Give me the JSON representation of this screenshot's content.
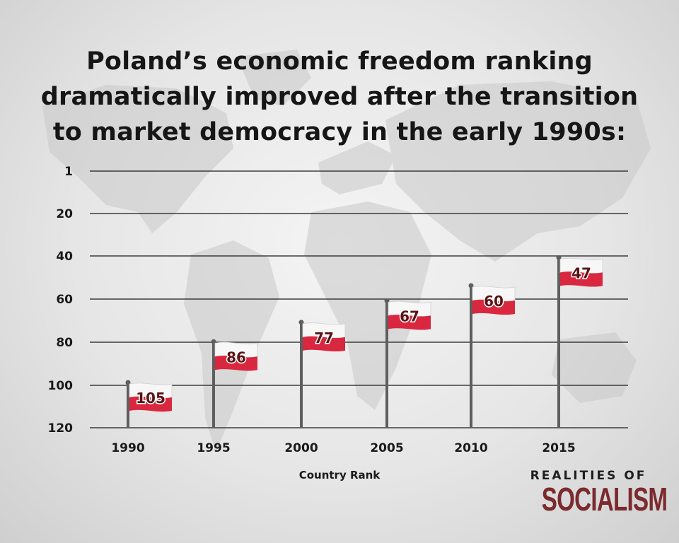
{
  "title_lines": [
    "Poland’s economic freedom ranking",
    "dramatically improved after the transition",
    "to market democracy in the early 1990s:"
  ],
  "colors": {
    "flag_red": "#d9273f",
    "flag_white": "#f7f7f7",
    "label_text": "#5a1414",
    "grid": "#1b1b1b",
    "pole": "#5e5e5e",
    "brand": "#7b2a2e"
  },
  "chart_data": {
    "type": "bar",
    "categories": [
      "1990",
      "1995",
      "2000",
      "2005",
      "2010",
      "2015"
    ],
    "values": [
      105,
      86,
      77,
      67,
      60,
      47
    ],
    "data_labels": [
      "105",
      "86",
      "77",
      "67",
      "60",
      "47"
    ],
    "y_ticks": [
      "1",
      "20",
      "40",
      "60",
      "80",
      "100",
      "120"
    ],
    "y_tick_values": [
      1,
      20,
      40,
      60,
      80,
      100,
      120
    ],
    "ylim": [
      1,
      120
    ],
    "y_inverted": true,
    "xlabel": "Country Rank",
    "ylabel": "",
    "grid": true,
    "mark_style": "flag on pole"
  },
  "brand": {
    "top": "REALITIES OF",
    "main": "SOCIALISM"
  }
}
